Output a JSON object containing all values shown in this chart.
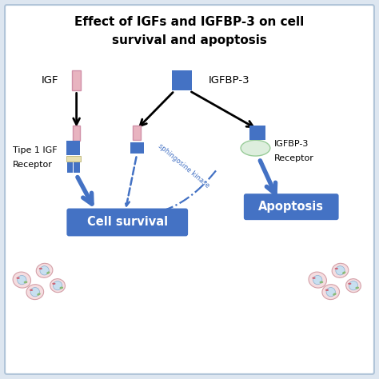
{
  "title_line1": "Effect of IGFs and IGFBP-3 on cell",
  "title_line2": "survival and apoptosis",
  "bg_color": "#dde6f0",
  "panel_color": "#f0f4f8",
  "steel_blue": "#4472C4",
  "pink_fill": "#e8b4c0",
  "pink_edge": "#d090a8",
  "cell_survival_label": "Cell survival",
  "apoptosis_label": "Apoptosis",
  "igf_label": "IGF",
  "igfbp3_label": "IGFBP-3",
  "receptor1_line1": "Tipe 1 IGF",
  "receptor1_line2": "Receptor",
  "receptor2_line1": "IGFBP-3",
  "receptor2_line2": "Receptor",
  "sphingosine_label": "sphingosine kinase"
}
